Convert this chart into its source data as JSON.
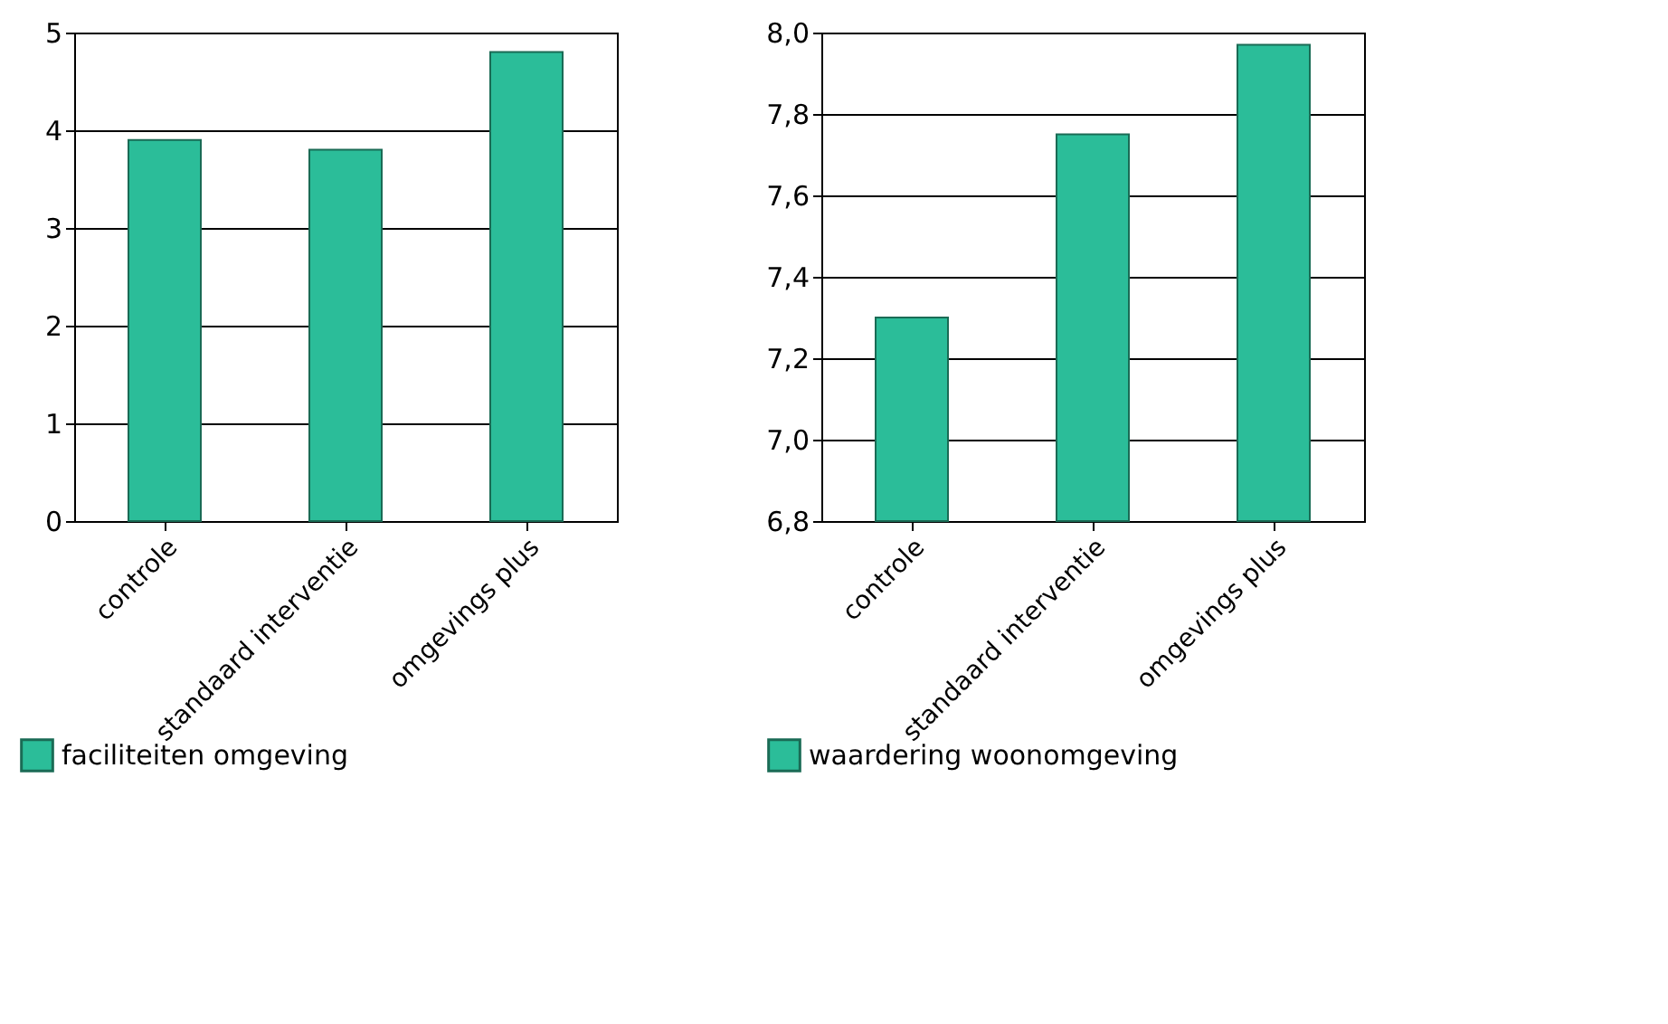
{
  "chart_data": [
    {
      "type": "bar",
      "categories": [
        "controle",
        "standaard interventie",
        "omgevings plus"
      ],
      "series": [
        {
          "name": "faciliteiten omgeving",
          "color": "#2bbd99",
          "values": [
            3.9,
            3.8,
            4.8
          ]
        }
      ],
      "ylim": [
        0,
        5
      ],
      "yticks": [
        0,
        1,
        2,
        3,
        4,
        5
      ],
      "grid": "y",
      "legend": "bottom left"
    },
    {
      "type": "bar",
      "categories": [
        "controle",
        "standaard interventie",
        "omgevings plus"
      ],
      "series": [
        {
          "name": "waardering woonomgeving",
          "color": "#2bbd99",
          "values": [
            7.3,
            7.75,
            7.97
          ]
        }
      ],
      "ylim": [
        6.8,
        8.0
      ],
      "yticks": [
        {
          "value": 6.8,
          "label": "6,8"
        },
        {
          "value": 7.0,
          "label": "7,0"
        },
        {
          "value": 7.2,
          "label": "7,2"
        },
        {
          "value": 7.4,
          "label": "7,4"
        },
        {
          "value": 7.6,
          "label": "7,6"
        },
        {
          "value": 7.8,
          "label": "7,8"
        },
        {
          "value": 8.0,
          "label": "8,0"
        }
      ],
      "grid": "y",
      "legend": "bottom left"
    }
  ]
}
